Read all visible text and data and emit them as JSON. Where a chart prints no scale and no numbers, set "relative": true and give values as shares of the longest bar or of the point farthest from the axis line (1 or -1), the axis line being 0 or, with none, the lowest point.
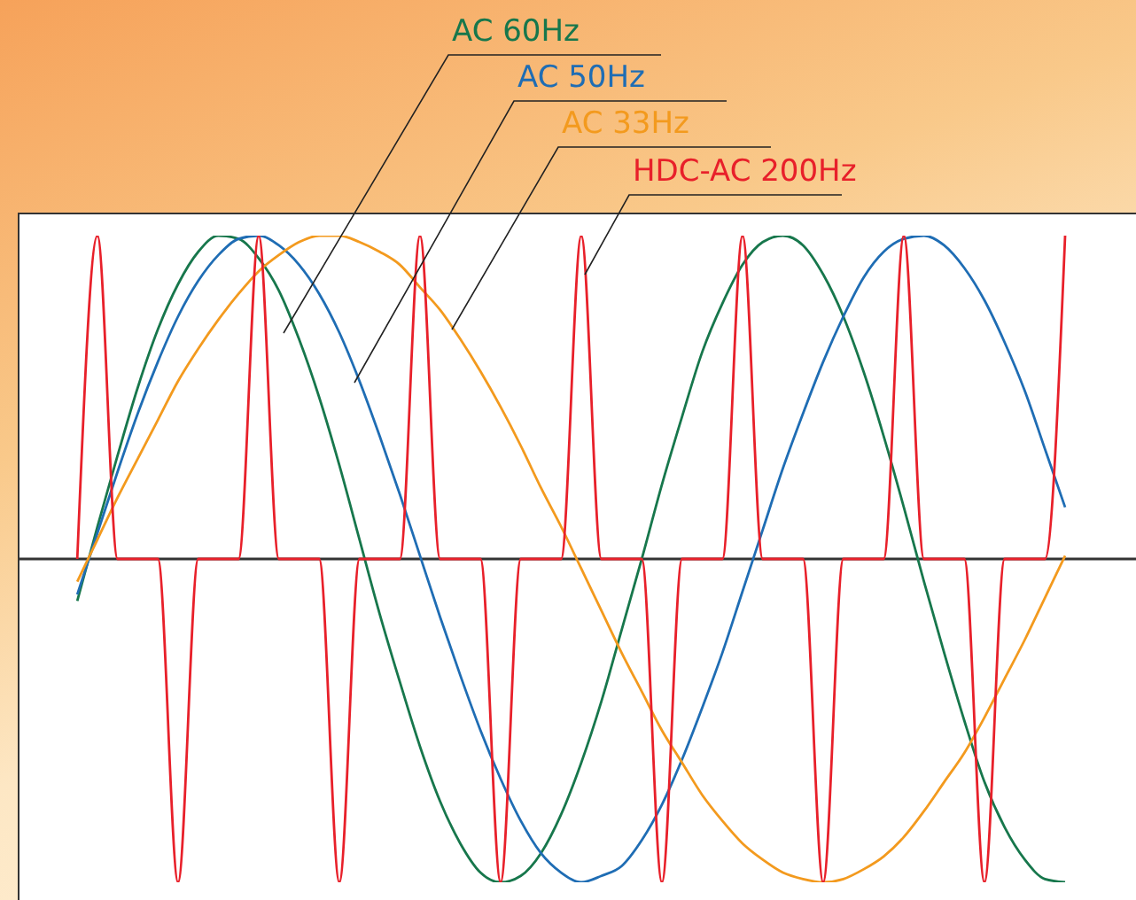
{
  "chart_data": {
    "type": "line",
    "relative": true,
    "legend": "top",
    "marker": "none",
    "line_style": "solid",
    "categories": [
      null,
      null,
      null,
      null,
      null,
      null,
      null,
      null,
      null,
      null,
      null,
      null,
      null,
      null,
      null,
      null,
      null,
      null,
      null,
      null,
      null,
      null,
      null,
      null,
      null,
      null,
      null,
      null,
      null,
      null,
      null,
      null,
      null,
      null,
      null,
      null,
      null,
      null,
      null,
      null,
      null,
      null,
      null,
      null,
      null,
      null,
      null,
      null,
      null,
      null
    ],
    "series": [
      {
        "name": "AC 60Hz",
        "color": "#17774c",
        "values": [
          -0.13,
          0.1,
          0.32,
          0.53,
          0.71,
          0.85,
          0.95,
          1.0,
          0.99,
          0.93,
          0.83,
          0.68,
          0.5,
          0.29,
          0.06,
          -0.17,
          -0.38,
          -0.58,
          -0.75,
          -0.88,
          -0.97,
          -1.0,
          -0.98,
          -0.91,
          -0.79,
          -0.63,
          -0.44,
          -0.22,
          0.0,
          0.23,
          0.44,
          0.64,
          0.79,
          0.91,
          0.98,
          1.0,
          0.97,
          0.88,
          0.75,
          0.58,
          0.38,
          0.16,
          -0.07,
          -0.29,
          -0.5,
          -0.69,
          -0.83,
          -0.93,
          -0.99,
          -1.0
        ]
      },
      {
        "name": "AC 50Hz",
        "color": "#1f6db4",
        "values": [
          -0.11,
          0.08,
          0.27,
          0.45,
          0.61,
          0.75,
          0.86,
          0.94,
          0.99,
          1.0,
          0.97,
          0.91,
          0.82,
          0.7,
          0.55,
          0.38,
          0.2,
          0.01,
          -0.18,
          -0.36,
          -0.53,
          -0.68,
          -0.81,
          -0.91,
          -0.97,
          -1.0,
          -0.98,
          -0.95,
          -0.87,
          -0.76,
          -0.62,
          -0.46,
          -0.29,
          -0.1,
          0.09,
          0.28,
          0.45,
          0.61,
          0.75,
          0.87,
          0.95,
          0.99,
          1.0,
          0.97,
          0.9,
          0.8,
          0.67,
          0.52,
          0.34,
          0.16
        ]
      },
      {
        "name": "AC 33Hz",
        "color": "#f39a1e",
        "values": [
          -0.07,
          0.06,
          0.19,
          0.31,
          0.43,
          0.55,
          0.65,
          0.74,
          0.82,
          0.89,
          0.94,
          0.98,
          1.0,
          1.0,
          0.98,
          0.95,
          0.91,
          0.84,
          0.77,
          0.68,
          0.58,
          0.47,
          0.35,
          0.22,
          0.1,
          -0.03,
          -0.16,
          -0.29,
          -0.41,
          -0.53,
          -0.63,
          -0.73,
          -0.81,
          -0.88,
          -0.93,
          -0.97,
          -0.99,
          -1.0,
          -0.99,
          -0.96,
          -0.92,
          -0.86,
          -0.78,
          -0.69,
          -0.6,
          -0.49,
          -0.37,
          -0.25,
          -0.12,
          0.01
        ]
      },
      {
        "name": "HDC-AC 200Hz",
        "color": "#e8202a",
        "values": [
          0,
          1,
          0,
          0,
          0,
          -1,
          0,
          0,
          0,
          1,
          0,
          0,
          0,
          -1,
          0,
          0,
          0,
          1,
          0,
          0,
          0,
          -1,
          0,
          0,
          0,
          1,
          0,
          0,
          0,
          -1,
          0,
          0,
          0,
          1,
          0,
          0,
          0,
          -1,
          0,
          0,
          0,
          1,
          0,
          0,
          0,
          -1,
          0,
          0,
          0,
          1
        ]
      }
    ]
  }
}
